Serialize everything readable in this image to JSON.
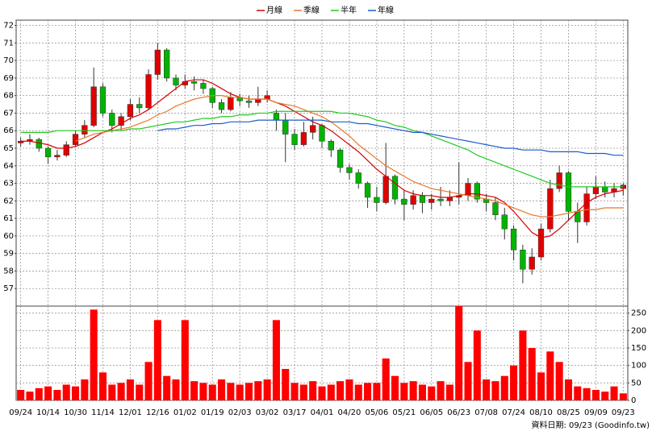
{
  "chart_data": [
    {
      "type": "candlestick",
      "up_color": "#e00000",
      "down_color": "#00b400",
      "ylim": [
        56,
        72.3
      ],
      "yticks": [
        57,
        58,
        59,
        60,
        61,
        62,
        63,
        64,
        65,
        66,
        67,
        68,
        69,
        70,
        71,
        72
      ],
      "grid": true,
      "legend": "top",
      "candles": [
        [
          65.3,
          65.6,
          65.1,
          65.4
        ],
        [
          65.4,
          65.8,
          65.2,
          65.5
        ],
        [
          65.5,
          65.6,
          64.8,
          65.0
        ],
        [
          65.0,
          65.1,
          64.1,
          64.5
        ],
        [
          64.5,
          64.9,
          64.3,
          64.6
        ],
        [
          64.6,
          65.4,
          64.5,
          65.2
        ],
        [
          65.2,
          66.0,
          65.1,
          65.8
        ],
        [
          65.8,
          66.6,
          65.6,
          66.3
        ],
        [
          66.3,
          69.6,
          66.2,
          68.5
        ],
        [
          68.5,
          68.7,
          66.8,
          67.0
        ],
        [
          67.0,
          67.2,
          65.9,
          66.3
        ],
        [
          66.3,
          67.0,
          66.0,
          66.8
        ],
        [
          66.8,
          67.8,
          66.6,
          67.5
        ],
        [
          67.5,
          67.9,
          67.0,
          67.3
        ],
        [
          67.3,
          69.5,
          67.2,
          69.2
        ],
        [
          69.2,
          71.0,
          68.9,
          70.6
        ],
        [
          70.6,
          70.7,
          68.8,
          69.0
        ],
        [
          69.0,
          69.2,
          68.3,
          68.6
        ],
        [
          68.6,
          69.2,
          68.4,
          68.8
        ],
        [
          68.8,
          69.1,
          68.3,
          68.7
        ],
        [
          68.7,
          68.9,
          68.1,
          68.4
        ],
        [
          68.4,
          68.5,
          67.3,
          67.6
        ],
        [
          67.6,
          67.8,
          67.0,
          67.2
        ],
        [
          67.2,
          68.2,
          67.1,
          67.9
        ],
        [
          67.9,
          68.1,
          67.4,
          67.7
        ],
        [
          67.7,
          68.0,
          67.3,
          67.6
        ],
        [
          67.6,
          68.5,
          67.4,
          67.8
        ],
        [
          67.8,
          68.3,
          67.6,
          68.0
        ],
        [
          67.0,
          67.2,
          66.0,
          66.6
        ],
        [
          66.6,
          67.0,
          64.2,
          65.8
        ],
        [
          65.8,
          66.1,
          64.9,
          65.2
        ],
        [
          65.2,
          66.5,
          65.1,
          65.9
        ],
        [
          65.9,
          66.8,
          65.5,
          66.3
        ],
        [
          66.3,
          66.4,
          65.0,
          65.4
        ],
        [
          65.4,
          65.5,
          64.5,
          64.9
        ],
        [
          64.9,
          65.0,
          63.6,
          63.9
        ],
        [
          63.9,
          64.1,
          63.2,
          63.6
        ],
        [
          63.6,
          63.8,
          62.7,
          63.0
        ],
        [
          63.0,
          63.1,
          61.6,
          62.2
        ],
        [
          62.2,
          62.8,
          61.4,
          61.9
        ],
        [
          61.9,
          65.3,
          61.8,
          63.4
        ],
        [
          63.4,
          63.5,
          61.8,
          62.1
        ],
        [
          62.1,
          62.6,
          60.9,
          61.8
        ],
        [
          61.8,
          62.6,
          61.5,
          62.3
        ],
        [
          62.3,
          62.5,
          61.3,
          61.9
        ],
        [
          61.9,
          62.4,
          61.5,
          62.1
        ],
        [
          62.1,
          62.8,
          61.7,
          62.0
        ],
        [
          62.0,
          62.6,
          61.7,
          62.2
        ],
        [
          62.2,
          64.2,
          61.8,
          62.3
        ],
        [
          62.3,
          63.3,
          62.0,
          63.0
        ],
        [
          63.0,
          63.1,
          61.9,
          62.1
        ],
        [
          62.1,
          62.4,
          61.4,
          61.9
        ],
        [
          61.9,
          62.2,
          60.9,
          61.2
        ],
        [
          61.2,
          61.6,
          59.8,
          60.4
        ],
        [
          60.4,
          60.6,
          58.6,
          59.2
        ],
        [
          59.2,
          59.5,
          57.3,
          58.1
        ],
        [
          58.1,
          59.3,
          57.8,
          58.8
        ],
        [
          58.8,
          60.7,
          58.6,
          60.4
        ],
        [
          60.4,
          63.2,
          60.2,
          62.7
        ],
        [
          62.7,
          64.0,
          62.5,
          63.6
        ],
        [
          63.6,
          63.7,
          60.9,
          61.4
        ],
        [
          61.4,
          61.9,
          59.6,
          60.8
        ],
        [
          60.8,
          62.8,
          60.6,
          62.4
        ],
        [
          62.4,
          63.4,
          62.1,
          62.8
        ],
        [
          62.8,
          63.1,
          62.2,
          62.5
        ],
        [
          62.5,
          63.0,
          62.2,
          62.7
        ],
        [
          62.7,
          63.0,
          62.3,
          62.9
        ]
      ],
      "series": [
        {
          "name": "月線",
          "color": "#d40000",
          "values": [
            65.4,
            65.4,
            65.3,
            65.2,
            65.0,
            65.0,
            65.1,
            65.3,
            65.6,
            65.9,
            66.1,
            66.4,
            66.7,
            66.9,
            67.2,
            67.6,
            68.0,
            68.4,
            68.8,
            68.9,
            68.9,
            68.7,
            68.4,
            68.1,
            67.9,
            67.8,
            67.8,
            67.8,
            67.6,
            67.4,
            67.1,
            66.8,
            66.5,
            66.3,
            66.0,
            65.6,
            65.2,
            64.8,
            64.3,
            63.8,
            63.4,
            63.0,
            62.6,
            62.4,
            62.3,
            62.3,
            62.2,
            62.2,
            62.3,
            62.4,
            62.4,
            62.3,
            62.2,
            61.9,
            61.4,
            60.8,
            60.2,
            59.9,
            60.0,
            60.4,
            60.9,
            61.4,
            61.9,
            62.2,
            62.4,
            62.5,
            62.6
          ]
        },
        {
          "name": "季線",
          "color": "#e8782a",
          "values": [
            null,
            null,
            null,
            null,
            null,
            null,
            65.4,
            65.6,
            65.8,
            65.9,
            66.0,
            66.1,
            66.2,
            66.4,
            66.6,
            66.9,
            67.1,
            67.4,
            67.6,
            67.8,
            67.9,
            68.0,
            68.0,
            67.9,
            67.9,
            67.8,
            67.8,
            67.8,
            67.6,
            67.5,
            67.4,
            67.2,
            67.0,
            66.8,
            66.5,
            66.1,
            65.7,
            65.2,
            64.8,
            64.4,
            64.0,
            63.7,
            63.4,
            63.1,
            62.9,
            62.7,
            62.6,
            62.5,
            62.4,
            62.3,
            62.2,
            62.1,
            62.0,
            61.8,
            61.6,
            61.4,
            61.2,
            61.1,
            61.1,
            61.2,
            61.3,
            61.4,
            61.5,
            61.5,
            61.6,
            61.6,
            61.6
          ]
        },
        {
          "name": "半年",
          "color": "#22c822",
          "values": [
            65.9,
            65.9,
            65.9,
            65.9,
            66.0,
            66.0,
            66.0,
            66.0,
            66.0,
            66.0,
            66.0,
            66.0,
            66.1,
            66.1,
            66.2,
            66.3,
            66.4,
            66.5,
            66.5,
            66.6,
            66.7,
            66.7,
            66.8,
            66.8,
            66.9,
            66.9,
            67.0,
            67.0,
            67.1,
            67.1,
            67.1,
            67.1,
            67.1,
            67.1,
            67.1,
            67.0,
            67.0,
            66.9,
            66.8,
            66.6,
            66.5,
            66.3,
            66.2,
            66.0,
            65.9,
            65.7,
            65.5,
            65.3,
            65.1,
            64.9,
            64.6,
            64.4,
            64.2,
            64.0,
            63.8,
            63.6,
            63.4,
            63.2,
            63.0,
            62.9,
            62.8,
            62.8,
            62.8,
            62.8,
            62.8,
            62.8,
            62.8
          ]
        },
        {
          "name": "年線",
          "color": "#1a5ccc",
          "values": [
            null,
            null,
            null,
            null,
            null,
            null,
            null,
            null,
            null,
            null,
            null,
            null,
            null,
            null,
            null,
            66.0,
            66.1,
            66.1,
            66.2,
            66.3,
            66.3,
            66.4,
            66.4,
            66.5,
            66.5,
            66.5,
            66.6,
            66.6,
            66.6,
            66.6,
            66.6,
            66.6,
            66.6,
            66.6,
            66.5,
            66.5,
            66.5,
            66.4,
            66.4,
            66.3,
            66.2,
            66.1,
            66.0,
            65.9,
            65.9,
            65.8,
            65.7,
            65.6,
            65.5,
            65.4,
            65.3,
            65.2,
            65.1,
            65.0,
            65.0,
            64.9,
            64.9,
            64.9,
            64.8,
            64.8,
            64.8,
            64.8,
            64.7,
            64.7,
            64.7,
            64.6,
            64.6
          ]
        }
      ]
    },
    {
      "type": "bar",
      "color": "#ff0000",
      "ylim": [
        0,
        270
      ],
      "yticks": [
        0,
        50,
        100,
        150,
        200,
        250
      ],
      "grid": true,
      "categories": [
        "09/24",
        null,
        null,
        "10/14",
        null,
        null,
        "10/30",
        null,
        null,
        "11/14",
        null,
        null,
        "12/01",
        null,
        null,
        "12/16",
        null,
        null,
        "01/02",
        null,
        null,
        "01/19",
        null,
        null,
        "02/03",
        null,
        null,
        "03/02",
        null,
        null,
        "03/17",
        null,
        null,
        "04/01",
        null,
        null,
        "04/20",
        null,
        null,
        "05/06",
        null,
        null,
        "05/21",
        null,
        null,
        "06/05",
        null,
        null,
        "06/23",
        null,
        null,
        "07/08",
        null,
        null,
        "07/24",
        null,
        null,
        "08/10",
        null,
        null,
        "08/25",
        null,
        null,
        "09/09",
        null,
        null,
        "09/23"
      ],
      "values": [
        30,
        25,
        35,
        40,
        30,
        45,
        40,
        60,
        260,
        80,
        45,
        50,
        60,
        45,
        110,
        230,
        70,
        60,
        230,
        55,
        50,
        45,
        60,
        50,
        45,
        50,
        55,
        60,
        230,
        90,
        50,
        45,
        55,
        40,
        45,
        55,
        60,
        45,
        50,
        50,
        120,
        70,
        50,
        55,
        45,
        40,
        55,
        45,
        275,
        110,
        200,
        60,
        55,
        70,
        100,
        200,
        150,
        80,
        140,
        110,
        60,
        40,
        35,
        30,
        25,
        40,
        20
      ],
      "footnote": "資料日期: 09/23 (Goodinfo.tw)"
    }
  ]
}
